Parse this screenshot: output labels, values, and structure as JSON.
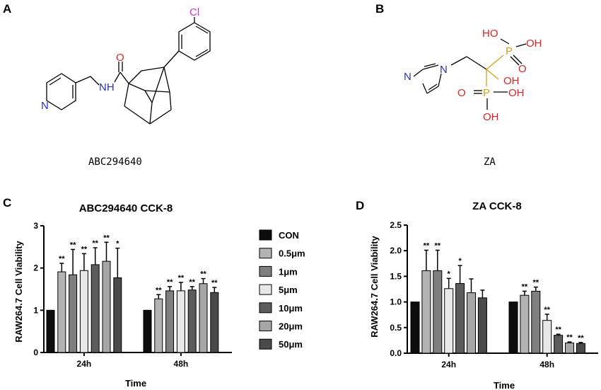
{
  "panels": {
    "a": {
      "letter": "A",
      "compound_name": "ABC294640",
      "atoms": {
        "cl": "Cl",
        "o": "O",
        "nh": "NH",
        "n": "N"
      }
    },
    "b": {
      "letter": "B",
      "compound_name": "ZA",
      "atoms": {
        "n1": "N",
        "n2": "N",
        "ho1": "HO",
        "oh1": "OH",
        "p1": "P",
        "o1": "O",
        "oh2": "OH",
        "o2": "O",
        "p2": "P",
        "oh3": "OH",
        "oh4": "OH"
      }
    },
    "c": {
      "letter": "C"
    },
    "d": {
      "letter": "D"
    }
  },
  "legend": {
    "entries": [
      "CON",
      "0.5μm",
      "1μm",
      "5μm",
      "10μm",
      "20μm",
      "50μm"
    ],
    "colors": [
      "#0d0d0d",
      "#b3b3b3",
      "#7f7f7f",
      "#e8e8e8",
      "#5c5c5c",
      "#a6a6a6",
      "#4a4a4a"
    ]
  },
  "chart_data": [
    {
      "type": "bar",
      "title": "ABC294640 CCK-8",
      "xlabel": "Time",
      "ylabel": "RAW264.7 Cell Viability",
      "categories": [
        "24h",
        "48h"
      ],
      "ylim": [
        0,
        3
      ],
      "yticks": [
        "0",
        "1",
        "2",
        "3"
      ],
      "series": [
        {
          "name": "CON",
          "values": [
            1.0,
            1.0
          ],
          "errors": [
            0,
            0
          ],
          "sig": [
            "",
            ""
          ]
        },
        {
          "name": "0.5μm",
          "values": [
            1.91,
            1.27
          ],
          "errors": [
            0.2,
            0.1
          ],
          "sig": [
            "**",
            "**"
          ]
        },
        {
          "name": "1μm",
          "values": [
            1.84,
            1.46
          ],
          "errors": [
            0.6,
            0.1
          ],
          "sig": [
            "**",
            "**"
          ]
        },
        {
          "name": "5μm",
          "values": [
            1.94,
            1.46
          ],
          "errors": [
            0.4,
            0.2
          ],
          "sig": [
            "**",
            "**"
          ]
        },
        {
          "name": "10μm",
          "values": [
            2.08,
            1.48
          ],
          "errors": [
            0.4,
            0.08
          ],
          "sig": [
            "**",
            "**"
          ]
        },
        {
          "name": "20μm",
          "values": [
            2.16,
            1.63
          ],
          "errors": [
            0.45,
            0.12
          ],
          "sig": [
            "**",
            "**"
          ]
        },
        {
          "name": "50μm",
          "values": [
            1.77,
            1.42
          ],
          "errors": [
            0.7,
            0.12
          ],
          "sig": [
            "*",
            "**"
          ]
        }
      ]
    },
    {
      "type": "bar",
      "title": "ZA CCK-8",
      "xlabel": "Time",
      "ylabel": "RAW264.7 Cell Viability",
      "categories": [
        "24h",
        "48h"
      ],
      "ylim": [
        0,
        2.5
      ],
      "yticks": [
        "0.0",
        "0.5",
        "1.0",
        "1.5",
        "2.0",
        "2.5"
      ],
      "series": [
        {
          "name": "CON",
          "values": [
            1.0,
            1.0
          ],
          "errors": [
            0,
            0
          ],
          "sig": [
            "",
            ""
          ]
        },
        {
          "name": "0.5μm",
          "values": [
            1.61,
            1.13
          ],
          "errors": [
            0.4,
            0.08
          ],
          "sig": [
            "**",
            "**"
          ]
        },
        {
          "name": "1μm",
          "values": [
            1.61,
            1.21
          ],
          "errors": [
            0.4,
            0.08
          ],
          "sig": [
            "**",
            "**"
          ]
        },
        {
          "name": "5μm",
          "values": [
            1.26,
            0.64
          ],
          "errors": [
            0.2,
            0.12
          ],
          "sig": [
            "*",
            "**"
          ]
        },
        {
          "name": "10μm",
          "values": [
            1.36,
            0.35
          ],
          "errors": [
            0.35,
            0.02
          ],
          "sig": [
            "*",
            "**"
          ]
        },
        {
          "name": "20μm",
          "values": [
            1.18,
            0.2
          ],
          "errors": [
            0.27,
            0.02
          ],
          "sig": [
            "",
            "**"
          ]
        },
        {
          "name": "50μm",
          "values": [
            1.08,
            0.19
          ],
          "errors": [
            0.15,
            0.02
          ],
          "sig": [
            "",
            "**"
          ]
        }
      ]
    }
  ]
}
